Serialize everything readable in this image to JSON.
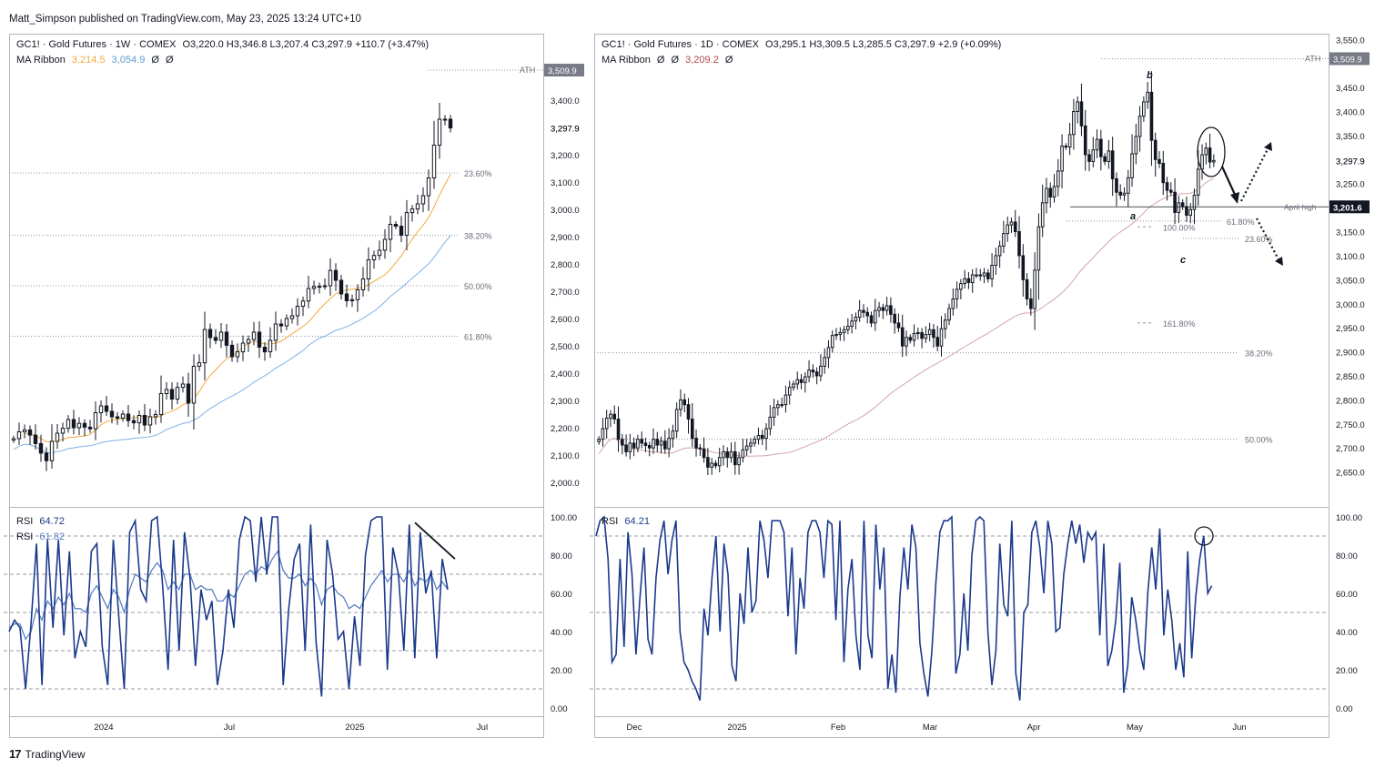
{
  "header": {
    "publisher": "Matt_Simpson published on TradingView.com, May 23, 2025 13:24 UTC+10"
  },
  "footer": {
    "brand": "TradingView",
    "logo": "17"
  },
  "weekly": {
    "title": "GC1! · Gold Futures · 1W · COMEX",
    "ohlc": "O3,220.0  H3,346.8  L3,207.4  C3,297.9  +110.7 (+3.47%)",
    "ma_label": "MA Ribbon",
    "ma_vals": [
      "3,214.5",
      "3,054.9",
      "Ø",
      "Ø"
    ],
    "ma_colors": [
      "#f2a93b",
      "#5b9bd5",
      "#131722",
      "#131722"
    ],
    "rsi_label": "RSI",
    "rsi_val1": "64.72",
    "rsi_val2": "61.82",
    "price_tag_current": "3,297.9",
    "ath_label": "ATH",
    "ath_price": "3,509.9"
  },
  "daily": {
    "title": "GC1! · Gold Futures · 1D · COMEX",
    "ohlc": "O3,295.1  H3,309.5  L3,285.5  C3,297.9  +2.9 (+0.09%)",
    "ma_label": "MA Ribbon",
    "ma_vals": [
      "Ø",
      "Ø",
      "3,209.2",
      "Ø"
    ],
    "ma_colors": [
      "#131722",
      "#131722",
      "#b2464b",
      "#131722"
    ],
    "rsi_label": "RSI",
    "rsi_val": "64.21",
    "price_tag_current": "3,297.9",
    "ath_label": "ATH",
    "ath_price": "3,509.9",
    "april_high_label": "April high",
    "april_high_price": "3,201.6",
    "wave_labels": [
      "a",
      "b",
      "c"
    ]
  },
  "chart_data": [
    {
      "type": "candlestick",
      "title": "GC1! · Gold Futures · 1W · COMEX",
      "ylim": [
        1950,
        3560
      ],
      "yticks": [
        "3,400.0",
        "3,297.9",
        "3,200.0",
        "3,100.0",
        "3,000.0",
        "2,900.0",
        "2,800.0",
        "2,700.0",
        "2,600.0",
        "2,500.0",
        "2,400.0",
        "2,300.0",
        "2,200.0",
        "2,100.0",
        "2,000.0"
      ],
      "ytick_values": [
        3400,
        3297.9,
        3200,
        3100,
        3000,
        2900,
        2800,
        2700,
        2600,
        2500,
        2400,
        2300,
        2200,
        2100,
        2000
      ],
      "xticks": [
        "2024",
        "Jul",
        "2025",
        "Jul"
      ],
      "closes": [
        2160,
        2185,
        2192,
        2173,
        2142,
        2107,
        2079,
        2150,
        2180,
        2198,
        2230,
        2200,
        2216,
        2202,
        2196,
        2255,
        2280,
        2260,
        2240,
        2235,
        2250,
        2226,
        2218,
        2245,
        2210,
        2240,
        2248,
        2325,
        2340,
        2305,
        2348,
        2360,
        2290,
        2425,
        2438,
        2560,
        2530,
        2520,
        2550,
        2502,
        2460,
        2478,
        2510,
        2523,
        2550,
        2495,
        2478,
        2520,
        2580,
        2573,
        2600,
        2610,
        2645,
        2664,
        2710,
        2717,
        2718,
        2720,
        2776,
        2740,
        2690,
        2665,
        2669,
        2705,
        2745,
        2815,
        2831,
        2850,
        2890,
        2945,
        2938,
        2905,
        2988,
        3001,
        3020,
        3050,
        3115,
        3235,
        3330,
        3330,
        3298
      ],
      "fib_levels": [
        {
          "label": "23.60%",
          "value": 3133
        },
        {
          "label": "38.20%",
          "value": 2905
        },
        {
          "label": "50.00%",
          "value": 2720
        },
        {
          "label": "61.80%",
          "value": 2535
        }
      ],
      "ath": 3509.9,
      "ma_fast_label": "3,214.5",
      "ma_slow_label": "3,054.9",
      "rsi": {
        "ylim": [
          0,
          100
        ],
        "yticks": [
          "100.00",
          "80.00",
          "60.00",
          "40.00",
          "20.00",
          "0.00"
        ],
        "levels": [
          90,
          70,
          50,
          30,
          10
        ],
        "fast_values": [
          40,
          46,
          42,
          10,
          44,
          86,
          12,
          88,
          42,
          88,
          38,
          82,
          26,
          40,
          32,
          82,
          86,
          32,
          12,
          88,
          48,
          10,
          92,
          98,
          62,
          56,
          98,
          100,
          64,
          20,
          88,
          30,
          92,
          68,
          22,
          62,
          46,
          56,
          12,
          30,
          62,
          42,
          88,
          100,
          98,
          66,
          100,
          70,
          100,
          100,
          12,
          52,
          78,
          86,
          30,
          96,
          34,
          6,
          88,
          70,
          36,
          40,
          10,
          48,
          22,
          80,
          98,
          100,
          100,
          20,
          84,
          70,
          30,
          96,
          26,
          92,
          60,
          72,
          26,
          78,
          62
        ],
        "slow_values": [
          42,
          44,
          44,
          36,
          40,
          52,
          46,
          56,
          52,
          58,
          54,
          60,
          52,
          52,
          50,
          60,
          64,
          58,
          52,
          62,
          58,
          50,
          62,
          70,
          68,
          66,
          72,
          76,
          72,
          62,
          66,
          62,
          70,
          70,
          62,
          64,
          62,
          62,
          56,
          56,
          60,
          58,
          64,
          70,
          72,
          70,
          74,
          72,
          78,
          82,
          72,
          68,
          68,
          70,
          64,
          68,
          64,
          54,
          62,
          64,
          60,
          58,
          52,
          54,
          52,
          58,
          64,
          68,
          72,
          66,
          70,
          70,
          66,
          72,
          64,
          68,
          66,
          70,
          62,
          66,
          62
        ],
        "trendline_from": [
          90,
          100
        ],
        "trendline_to": [
          94,
          80
        ]
      }
    },
    {
      "type": "candlestick",
      "title": "GC1! · Gold Futures · 1D · COMEX",
      "ylim": [
        2600,
        3560
      ],
      "yticks": [
        "3,550.0",
        "3,450.0",
        "3,400.0",
        "3,350.0",
        "3,297.9",
        "3,250.0",
        "3,150.0",
        "3,100.0",
        "3,050.0",
        "3,000.0",
        "2,950.0",
        "2,900.0",
        "2,850.0",
        "2,800.0",
        "2,750.0",
        "2,700.0",
        "2,650.0"
      ],
      "ytick_values": [
        3550,
        3450,
        3400,
        3350,
        3297.9,
        3250,
        3150,
        3100,
        3050,
        3000,
        2950,
        2900,
        2850,
        2800,
        2750,
        2700,
        2650
      ],
      "xticks": [
        "Dec",
        "2025",
        "Feb",
        "Mar",
        "Apr",
        "May",
        "Jun"
      ],
      "closes": [
        2718,
        2740,
        2762,
        2770,
        2760,
        2718,
        2706,
        2692,
        2710,
        2700,
        2718,
        2710,
        2705,
        2700,
        2718,
        2706,
        2714,
        2698,
        2720,
        2735,
        2780,
        2800,
        2790,
        2760,
        2720,
        2700,
        2698,
        2680,
        2660,
        2668,
        2663,
        2680,
        2692,
        2680,
        2692,
        2665,
        2680,
        2696,
        2704,
        2710,
        2718,
        2726,
        2720,
        2740,
        2764,
        2784,
        2790,
        2790,
        2810,
        2826,
        2833,
        2842,
        2836,
        2848,
        2862,
        2858,
        2850,
        2870,
        2888,
        2909,
        2934,
        2936,
        2940,
        2946,
        2953,
        2964,
        2972,
        2986,
        2982,
        2975,
        2960,
        2986,
        2992,
        2986,
        2996,
        2978,
        2960,
        2950,
        2912,
        2930,
        2924,
        2938,
        2940,
        2928,
        2936,
        2946,
        2930,
        2912,
        2948,
        2966,
        2990,
        3010,
        3030,
        3042,
        3052,
        3044,
        3060,
        3060,
        3058,
        3064,
        3052,
        3080,
        3100,
        3120,
        3146,
        3164,
        3170,
        3150,
        3100,
        3050,
        3010,
        2990,
        3070,
        3160,
        3210,
        3240,
        3222,
        3244,
        3276,
        3328,
        3326,
        3352,
        3400,
        3420,
        3370,
        3310,
        3296,
        3320,
        3342,
        3306,
        3296,
        3318,
        3260,
        3232,
        3226,
        3230,
        3262,
        3312,
        3348,
        3390,
        3420,
        3440,
        3340,
        3300,
        3292,
        3252,
        3236,
        3232,
        3190,
        3210,
        3202,
        3184,
        3196,
        3226,
        3280,
        3310,
        3324,
        3295,
        3298
      ],
      "fib_levels": [
        {
          "label": "38.20%",
          "value": 2898
        },
        {
          "label": "50.00%",
          "value": 2718
        },
        {
          "label": "61.80%",
          "value": 3172
        },
        {
          "label": "100.00%",
          "value": 3160
        },
        {
          "label": "23.60%",
          "value": 3136
        },
        {
          "label": "161.80%",
          "value": 2960
        }
      ],
      "ath": 3509.9,
      "april_high": 3201.6,
      "ma_label": "3,209.2",
      "rsi": {
        "ylim": [
          0,
          100
        ],
        "yticks": [
          "100.00",
          "80.00",
          "60.00",
          "40.00",
          "20.00",
          "0.00"
        ],
        "levels": [
          90,
          50,
          10
        ],
        "values": [
          90,
          98,
          100,
          78,
          24,
          28,
          78,
          32,
          92,
          70,
          28,
          58,
          84,
          36,
          28,
          68,
          88,
          98,
          70,
          88,
          98,
          40,
          24,
          20,
          14,
          10,
          4,
          52,
          38,
          68,
          90,
          40,
          86,
          70,
          22,
          14,
          60,
          44,
          84,
          50,
          56,
          98,
          88,
          68,
          98,
          98,
          98,
          92,
          48,
          84,
          28,
          68,
          52,
          92,
          98,
          98,
          92,
          68,
          98,
          96,
          46,
          98,
          24,
          62,
          78,
          38,
          20,
          98,
          38,
          26,
          96,
          62,
          84,
          10,
          28,
          8,
          58,
          84,
          62,
          96,
          84,
          34,
          18,
          6,
          30,
          66,
          92,
          98,
          98,
          100,
          18,
          28,
          60,
          30,
          80,
          98,
          100,
          98,
          40,
          12,
          30,
          86,
          54,
          48,
          98,
          18,
          4,
          50,
          54,
          92,
          98,
          84,
          60,
          98,
          86,
          40,
          42,
          70,
          86,
          98,
          86,
          96,
          76,
          92,
          88,
          92,
          38,
          86,
          22,
          30,
          46,
          76,
          8,
          22,
          58,
          46,
          30,
          20,
          60,
          84,
          62,
          94,
          38,
          62,
          46,
          20,
          34,
          16,
          82,
          26,
          58,
          78,
          90,
          60,
          64
        ],
        "highlight_value": 90
      }
    }
  ]
}
